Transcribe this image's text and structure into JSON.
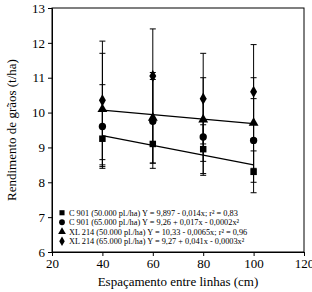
{
  "chart_data": {
    "type": "scatter",
    "x_label": "Espaçamento entre linhas (cm)",
    "y_label": "Rendimento de grãos (t/ha)",
    "x": [
      40,
      60,
      80,
      100
    ],
    "xlim": [
      20,
      120
    ],
    "xticks": [
      20,
      40,
      60,
      80,
      100,
      120
    ],
    "ylim": [
      6,
      13
    ],
    "yticks": [
      6,
      7,
      8,
      9,
      10,
      11,
      12,
      13
    ],
    "legend": "lower left",
    "series": [
      {
        "name": "C 901 (50.000 pl./ha) Y = 9,897 - 0,014x; r² = 0,83",
        "color": "#000000",
        "marker": "square",
        "values": [
          9.25,
          9.1,
          8.95,
          8.3
        ],
        "errors": [
          0.8,
          0.7,
          0.7,
          0.6
        ],
        "trend": {
          "x": [
            40,
            100
          ],
          "values": [
            9.34,
            8.5
          ],
          "line_style": "solid"
        }
      },
      {
        "name": "C 901 (65.000 pl./ha) Y = 9,26 + 0,017x - 0,0002x²",
        "color": "#000000",
        "marker": "circle",
        "values": [
          9.6,
          9.75,
          9.3,
          9.2
        ],
        "errors": [
          1.2,
          1.2,
          1.1,
          1.2
        ]
      },
      {
        "name": "XL 214 (50.000 pl./ha) Y = 10,33 - 0,0065x; r² = 0,96",
        "color": "#000000",
        "marker": "triangle",
        "values": [
          10.1,
          9.85,
          9.8,
          9.7
        ],
        "errors": [
          1.6,
          1.3,
          1.2,
          1.3
        ],
        "trend": {
          "x": [
            40,
            100
          ],
          "values": [
            10.07,
            9.68
          ],
          "line_style": "solid"
        }
      },
      {
        "name": "XL 214 (65.000 pl./ha) Y = 9,27 + 0,041x - 0,0003x²",
        "color": "#000000",
        "marker": "diamond",
        "values": [
          10.35,
          11.05,
          10.4,
          10.6
        ],
        "errors": [
          1.7,
          1.35,
          1.3,
          1.35
        ]
      }
    ]
  }
}
